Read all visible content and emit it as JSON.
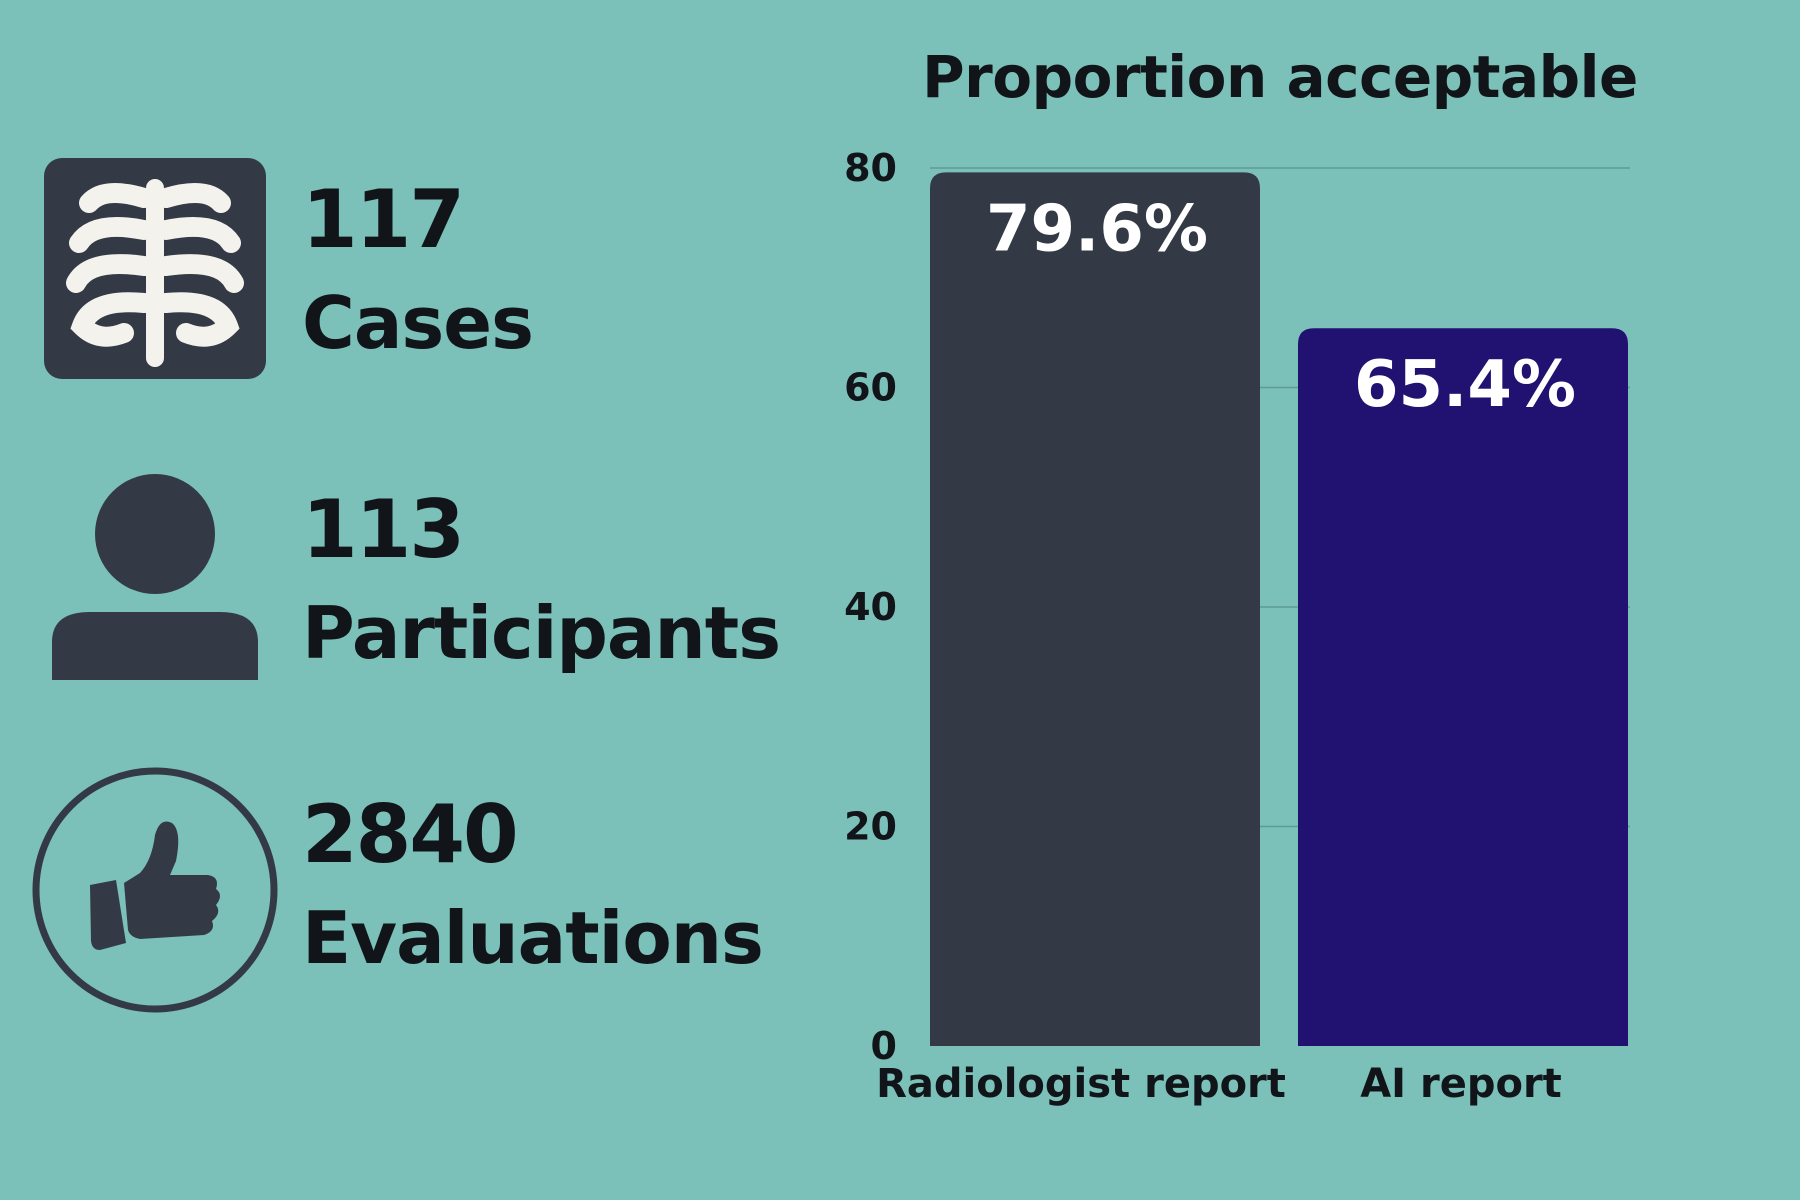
{
  "stats": [
    {
      "value": "117",
      "label": "Cases",
      "icon": "ribcage-icon"
    },
    {
      "value": "113",
      "label": "Participants",
      "icon": "person-icon"
    },
    {
      "value": "2840",
      "label": "Evaluations",
      "icon": "thumbs-up-icon"
    }
  ],
  "colors": {
    "background": "#7bc0b9",
    "radiologist_bar": "#333a45",
    "ai_bar": "#211272",
    "icon_dark": "#333a45"
  },
  "chart_data": {
    "type": "bar",
    "title": "Proportion acceptable",
    "categories": [
      "Radiologist report",
      "AI report"
    ],
    "values": [
      79.6,
      65.4
    ],
    "data_labels": [
      "79.6%",
      "65.4%"
    ],
    "yticks": [
      0,
      20,
      40,
      60,
      80
    ],
    "ylim": [
      0,
      80
    ],
    "xlabel": "",
    "ylabel": "",
    "grid": true
  }
}
